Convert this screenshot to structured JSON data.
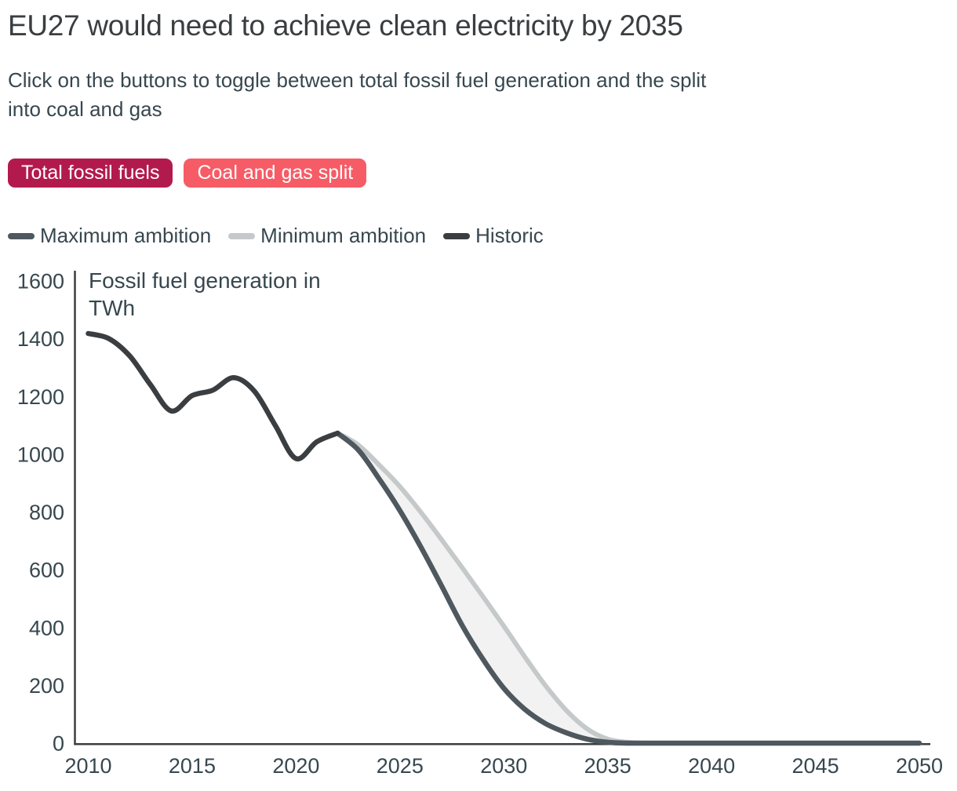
{
  "header": {
    "title": "EU27 would need to achieve clean electricity by 2035",
    "subtitle_line1": "Click on the buttons to toggle between total fossil fuel generation and the split",
    "subtitle_line2": "into coal and gas"
  },
  "buttons": {
    "total": {
      "label": "Total fossil fuels",
      "bg": "#b21a4e",
      "fg": "#ffffff"
    },
    "split": {
      "label": "Coal and gas split",
      "bg": "#f65c66",
      "fg": "#ffffff"
    }
  },
  "legend": {
    "items": [
      {
        "label": "Maximum ambition",
        "color": "#4e585e"
      },
      {
        "label": "Minimum ambition",
        "color": "#c5c9ca"
      },
      {
        "label": "Historic",
        "color": "#3a3e41"
      }
    ]
  },
  "chart_data": {
    "type": "line",
    "ylabel_lines": [
      "Fossil fuel generation in",
      "TWh"
    ],
    "ylim": [
      0,
      1600
    ],
    "yticks": [
      0,
      200,
      400,
      600,
      800,
      1000,
      1200,
      1400,
      1600
    ],
    "xlim": [
      2010,
      2050
    ],
    "xticks": [
      2010,
      2015,
      2020,
      2025,
      2030,
      2035,
      2040,
      2045,
      2050
    ],
    "axis_color": "#3a3f42",
    "grid": false,
    "legend_position": "top",
    "band": {
      "upper": "Minimum ambition",
      "lower": "Maximum ambition",
      "color": "#f2f2f2"
    },
    "series": [
      {
        "name": "Minimum ambition",
        "color": "#c5c9ca",
        "width": 6,
        "x": [
          2022,
          2023,
          2024,
          2025,
          2026,
          2027,
          2028,
          2029,
          2030,
          2031,
          2032,
          2033,
          2034,
          2035,
          2036,
          2037,
          2038,
          2040,
          2042,
          2044,
          2046,
          2048,
          2050
        ],
        "values": [
          1073,
          1032,
          963,
          888,
          800,
          705,
          607,
          507,
          405,
          300,
          200,
          114,
          50,
          14,
          3,
          0,
          0,
          0,
          0,
          0,
          0,
          0,
          0
        ]
      },
      {
        "name": "Maximum ambition",
        "color": "#4e585e",
        "width": 6.5,
        "x": [
          2022,
          2023,
          2024,
          2025,
          2026,
          2027,
          2028,
          2029,
          2030,
          2031,
          2032,
          2033,
          2034,
          2035,
          2036,
          2038,
          2040,
          2042,
          2044,
          2046,
          2048,
          2050
        ],
        "values": [
          1073,
          1015,
          915,
          805,
          680,
          545,
          407,
          290,
          190,
          118,
          68,
          36,
          14,
          3,
          0,
          0,
          0,
          0,
          0,
          0,
          0,
          0
        ]
      },
      {
        "name": "Historic",
        "color": "#3a3e41",
        "width": 6.5,
        "x": [
          2010,
          2011,
          2012,
          2013,
          2014,
          2015,
          2016,
          2017,
          2018,
          2019,
          2020,
          2021,
          2022
        ],
        "values": [
          1418,
          1400,
          1340,
          1240,
          1150,
          1203,
          1222,
          1265,
          1218,
          1100,
          985,
          1043,
          1073
        ]
      }
    ]
  }
}
